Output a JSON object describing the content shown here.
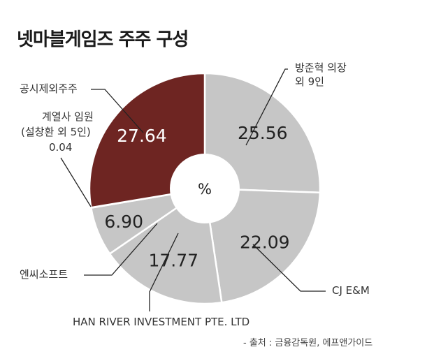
{
  "chart_data": {
    "type": "pie",
    "title": "넷마블게임즈 주주 구성",
    "center_label": "%",
    "unit": "%",
    "colors": {
      "highlight": "#6e2522",
      "default": "#c6c6c6",
      "leader": "#222222"
    },
    "slices": [
      {
        "name": "방준혁 의장 외 9인",
        "value": 25.56,
        "value_label": "25.56"
      },
      {
        "name": "CJ E&M",
        "value": 22.09,
        "value_label": "22.09"
      },
      {
        "name": "HAN RIVER INVESTMENT PTE. LTD",
        "value": 17.77,
        "value_label": "17.77"
      },
      {
        "name": "엔씨소프트",
        "value": 6.9,
        "value_label": "6.90"
      },
      {
        "name": "계열사 임원 (설창환 외 5인)",
        "value": 0.04,
        "value_label": "0.04"
      },
      {
        "name": "공시제외주주",
        "value": 27.64,
        "value_label": "27.64"
      }
    ]
  },
  "labels": {
    "bang": [
      "방준혁 의장",
      "외 9인"
    ],
    "cj": "CJ E&M",
    "han": "HAN RIVER INVESTMENT PTE. LTD",
    "nc": "엔씨소프트",
    "exec": [
      "계열사 임원",
      "(설창환 외 5인)",
      "0.04"
    ],
    "public": "공시제외주주"
  },
  "source": "- 출처 : 금융감독원, 에프앤가이드"
}
